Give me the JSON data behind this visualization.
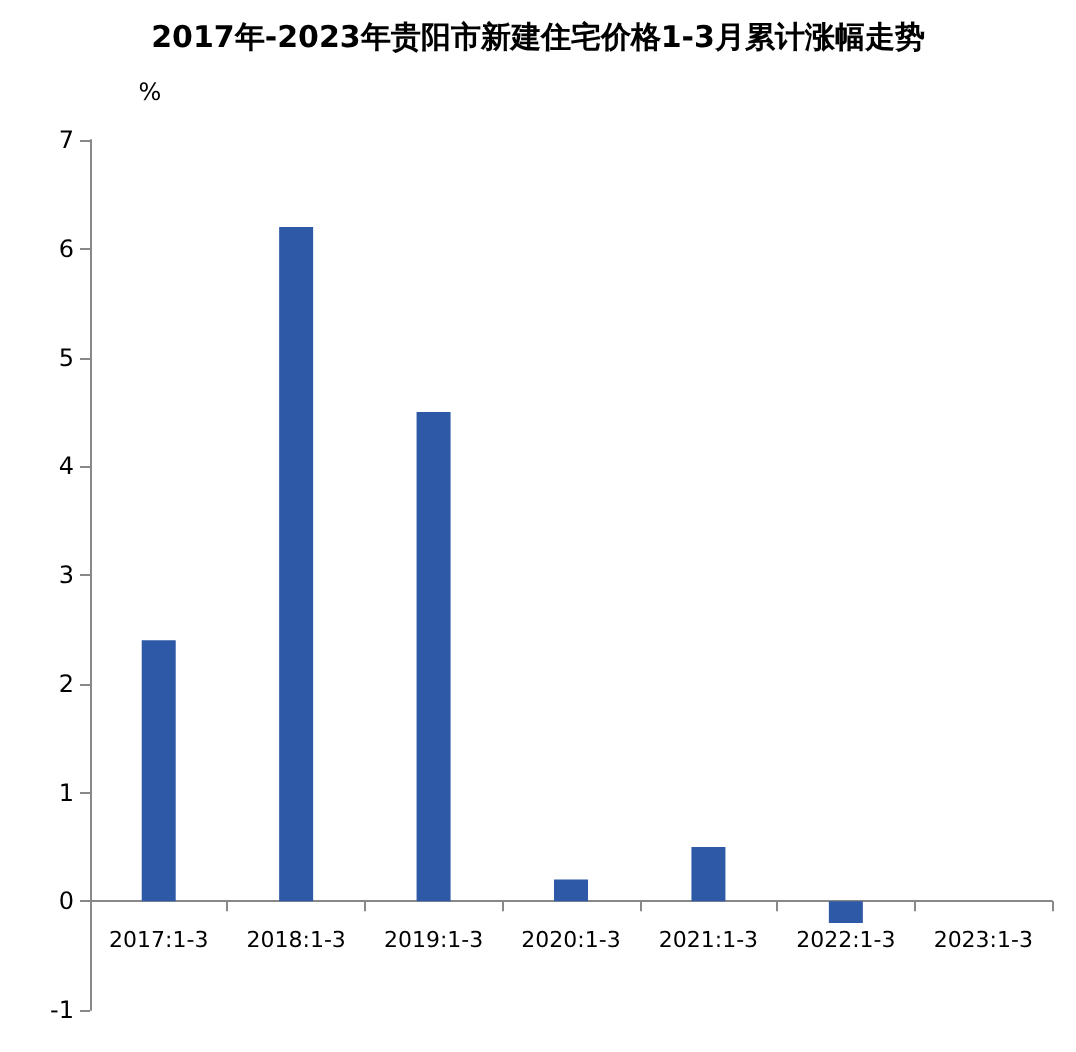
{
  "chart_data": {
    "type": "bar",
    "title": "2017年-2023年贵阳市新建住宅价格1-3月累计涨幅走势",
    "ylabel": "%",
    "categories": [
      "2017:1-3",
      "2018:1-3",
      "2019:1-3",
      "2020:1-3",
      "2021:1-3",
      "2022:1-3",
      "2023:1-3"
    ],
    "values": [
      2.4,
      6.2,
      4.5,
      0.2,
      0.5,
      -0.2,
      0
    ],
    "color": "#2e59a7",
    "ylim": [
      -1,
      7
    ],
    "yticks": [
      -1,
      0,
      1,
      2,
      3,
      4,
      5,
      6,
      7
    ]
  }
}
